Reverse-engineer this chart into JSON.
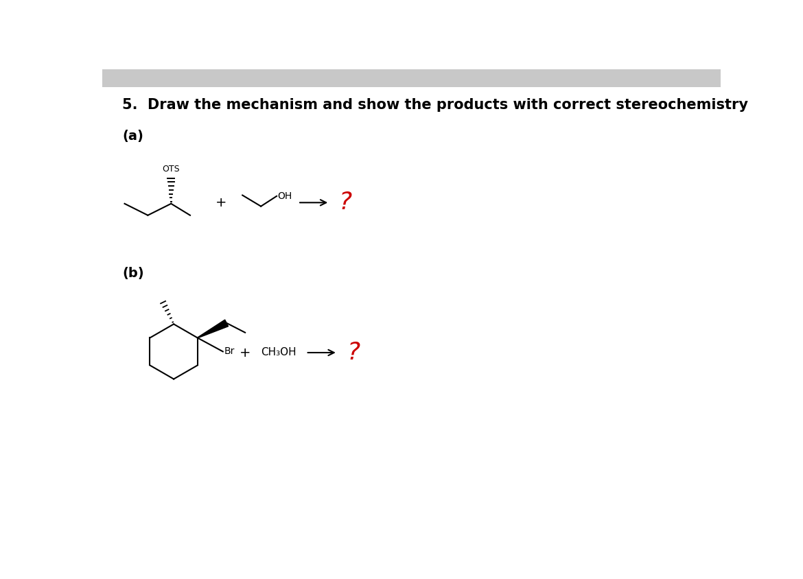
{
  "title": "5.  Draw the mechanism and show the products with correct stereochemistry",
  "title_fontsize": 15,
  "title_fontweight": "bold",
  "background_color": "#ffffff",
  "header_bg_color": "#c8c8c8",
  "label_a": "(a)",
  "label_b": "(b)",
  "question_mark_color": "#cc0000",
  "arrow_color": "#000000",
  "molecule_color": "#000000",
  "plus_sign": "+",
  "ots_label": "OTS",
  "br_label": "Br",
  "ch3oh_label": "CH₃OH"
}
